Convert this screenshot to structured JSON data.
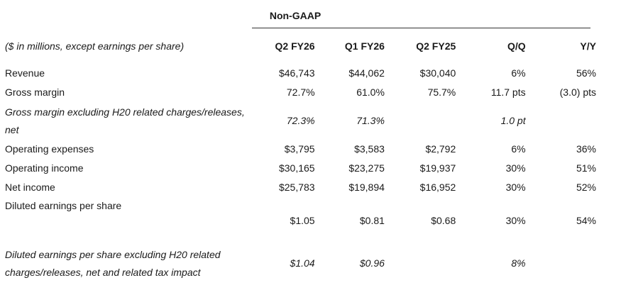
{
  "table": {
    "group_label": "Non-GAAP",
    "header_label": "($ in millions, except earnings per share)",
    "columns": [
      "Q2 FY26",
      "Q1 FY26",
      "Q2 FY25",
      "Q/Q",
      "Y/Y"
    ],
    "rows": [
      {
        "label": "Revenue",
        "values": [
          "$46,743",
          "$44,062",
          "$30,040",
          "6%",
          "56%"
        ]
      },
      {
        "label": "Gross margin",
        "values": [
          "72.7%",
          "61.0%",
          "75.7%",
          "11.7 pts",
          "(3.0) pts"
        ]
      },
      {
        "label": "Gross margin excluding H20 related charges/releases, net",
        "values": [
          "72.3%",
          "71.3%",
          "",
          "1.0 pt",
          ""
        ]
      },
      {
        "label": "Operating expenses",
        "values": [
          "$3,795",
          "$3,583",
          "$2,792",
          "6%",
          "36%"
        ]
      },
      {
        "label": "Operating income",
        "values": [
          "$30,165",
          "$23,275",
          "$19,937",
          "30%",
          "51%"
        ]
      },
      {
        "label": "Net income",
        "values": [
          "$25,783",
          "$19,894",
          "$16,952",
          "30%",
          "52%"
        ]
      },
      {
        "label": "Diluted earnings per share",
        "values": [
          "$1.05",
          "$0.81",
          "$0.68",
          "30%",
          "54%"
        ]
      },
      {
        "label": "Diluted earnings per share excluding H20 related charges/releases, net and related tax impact",
        "values": [
          "$1.04",
          "$0.96",
          "",
          "8%",
          ""
        ]
      }
    ]
  }
}
